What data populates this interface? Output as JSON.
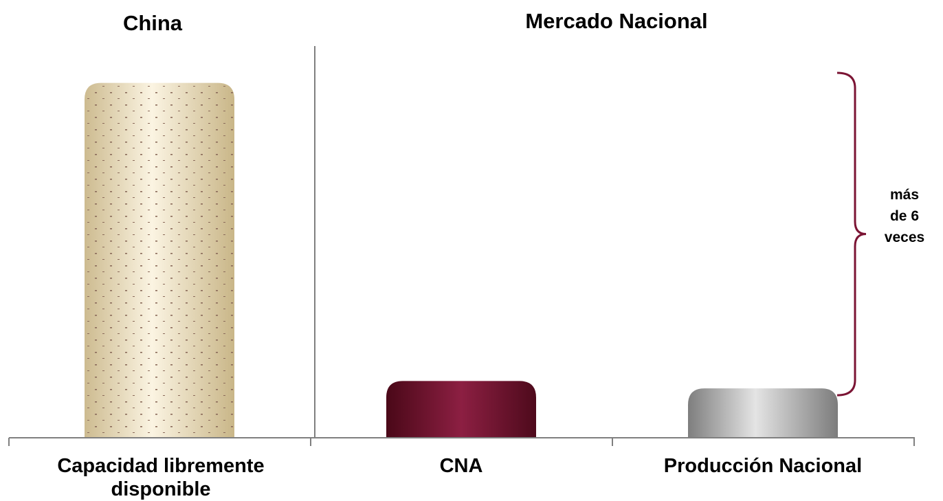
{
  "chart_data": {
    "type": "bar",
    "groups": [
      {
        "title": "China",
        "categories": [
          "Capacidad libremente disponible"
        ]
      },
      {
        "title": "Mercado Nacional",
        "categories": [
          "CNA",
          "Producción Nacional"
        ]
      }
    ],
    "categories": [
      "Capacidad libremente disponible",
      "CNA",
      "Producción Nacional"
    ],
    "category_lines": [
      [
        "Capacidad libremente",
        "disponible"
      ],
      [
        "CNA"
      ],
      [
        "Producción Nacional"
      ]
    ],
    "values": [
      6.25,
      1.0,
      0.87
    ],
    "ylim": [
      0,
      6.5
    ],
    "grid": false,
    "annotation": {
      "lines": [
        "más",
        "de 6",
        "veces"
      ],
      "span": [
        0.87,
        6.25
      ]
    },
    "colors": {
      "bar1": "#e9dcb8",
      "bar2": "#7b1434",
      "bar3": "#a8a8a8",
      "brace": "#7b1434",
      "axis": "#7f7f7f"
    }
  }
}
